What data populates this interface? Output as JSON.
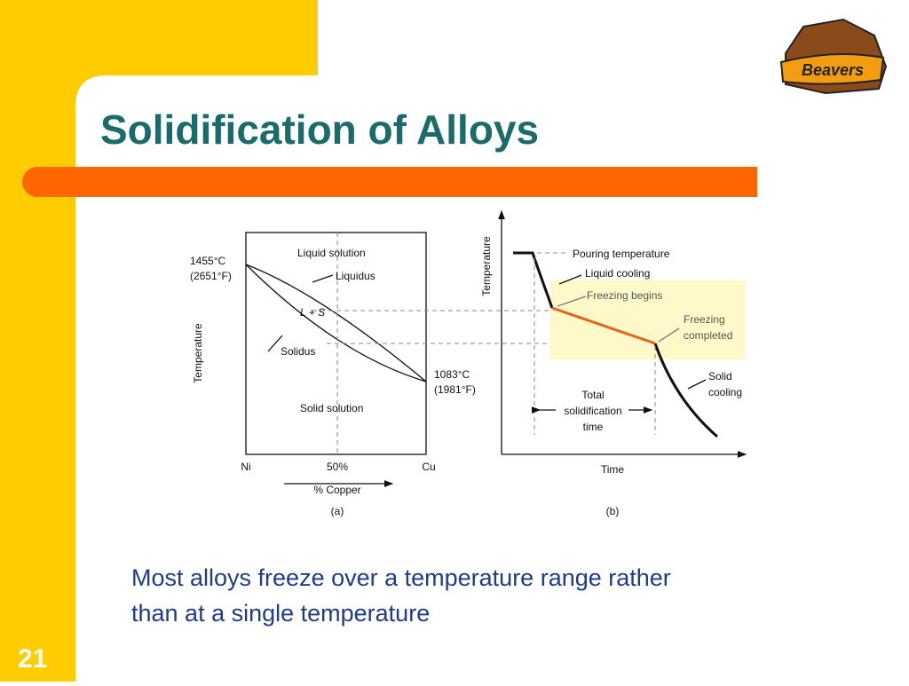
{
  "slide": {
    "title": "Solidification of Alloys",
    "logo": "Beavers",
    "body": [
      "Most alloys freeze over a temperature range rather",
      "than at a single temperature"
    ],
    "number": "21"
  },
  "figure_a": {
    "liquid_solution": "Liquid solution",
    "liquidus": "Liquidus",
    "top_temp": [
      "1455°C",
      "(2651°F)"
    ],
    "two_phase": "L + S",
    "solidus": "Solidus",
    "axis": "Temperature",
    "bottom_temp": [
      "1083°C",
      "(1981°F)"
    ],
    "solid_solution": "Solid solution",
    "left_end": "Ni",
    "middle": "50%",
    "right_end": "Cu",
    "x_axis": "% Copper",
    "caption": "(a)"
  },
  "figure_b": {
    "axis": "Temperature",
    "pouring": "Pouring temperature",
    "liquid_cooling": "Liquid cooling",
    "freezing_begins": "Freezing begins",
    "freezing_completed": [
      "Freezing",
      "completed"
    ],
    "solid_cooling": [
      "Solid",
      "cooling"
    ],
    "total_time": [
      "Total",
      "solidification",
      "time"
    ],
    "x_axis": "Time",
    "caption": "(b)"
  }
}
